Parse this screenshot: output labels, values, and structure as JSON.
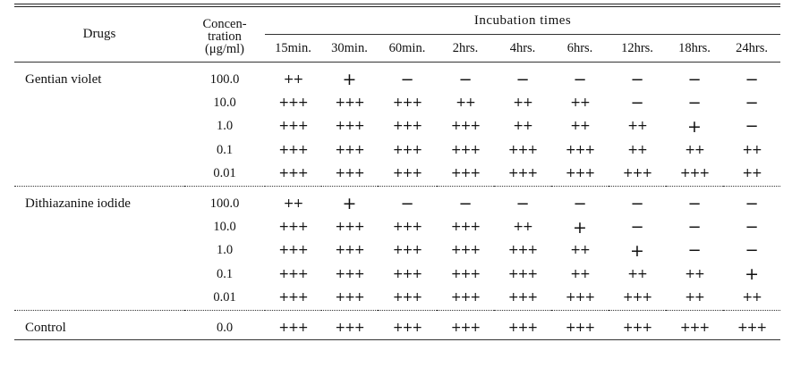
{
  "table": {
    "header": {
      "drugs_label": "Drugs",
      "concentration_label_lines": [
        "Concen-",
        "tration",
        "(μg/ml)"
      ],
      "incubation_label": "Incubation times",
      "times": [
        "15min.",
        "30min.",
        "60min.",
        "2hrs.",
        "4hrs.",
        "6hrs.",
        "12hrs.",
        "18hrs.",
        "24hrs."
      ]
    },
    "groups": [
      {
        "drug": "Gentian violet",
        "rows": [
          {
            "conc": "100.0",
            "values": [
              "++",
              "+",
              "−",
              "−",
              "−",
              "−",
              "−",
              "−",
              "−"
            ]
          },
          {
            "conc": "10.0",
            "values": [
              "+++",
              "+++",
              "+++",
              "++",
              "++",
              "++",
              "−",
              "−",
              "−"
            ]
          },
          {
            "conc": "1.0",
            "values": [
              "+++",
              "+++",
              "+++",
              "+++",
              "++",
              "++",
              "++",
              "+",
              "−"
            ]
          },
          {
            "conc": "0.1",
            "values": [
              "+++",
              "+++",
              "+++",
              "+++",
              "+++",
              "+++",
              "++",
              "++",
              "++"
            ]
          },
          {
            "conc": "0.01",
            "values": [
              "+++",
              "+++",
              "+++",
              "+++",
              "+++",
              "+++",
              "+++",
              "+++",
              "++"
            ]
          }
        ]
      },
      {
        "drug": "Dithiazanine iodide",
        "rows": [
          {
            "conc": "100.0",
            "values": [
              "++",
              "+",
              "−",
              "−",
              "−",
              "−",
              "−",
              "−",
              "−"
            ]
          },
          {
            "conc": "10.0",
            "values": [
              "+++",
              "+++",
              "+++",
              "+++",
              "++",
              "+",
              "−",
              "−",
              "−"
            ]
          },
          {
            "conc": "1.0",
            "values": [
              "+++",
              "+++",
              "+++",
              "+++",
              "+++",
              "++",
              "+",
              "−",
              "−"
            ]
          },
          {
            "conc": "0.1",
            "values": [
              "+++",
              "+++",
              "+++",
              "+++",
              "+++",
              "++",
              "++",
              "++",
              "+"
            ]
          },
          {
            "conc": "0.01",
            "values": [
              "+++",
              "+++",
              "+++",
              "+++",
              "+++",
              "+++",
              "+++",
              "++",
              "++"
            ]
          }
        ]
      },
      {
        "drug": "Control",
        "rows": [
          {
            "conc": "0.0",
            "values": [
              "+++",
              "+++",
              "+++",
              "+++",
              "+++",
              "+++",
              "+++",
              "+++",
              "+++"
            ]
          }
        ]
      }
    ]
  }
}
